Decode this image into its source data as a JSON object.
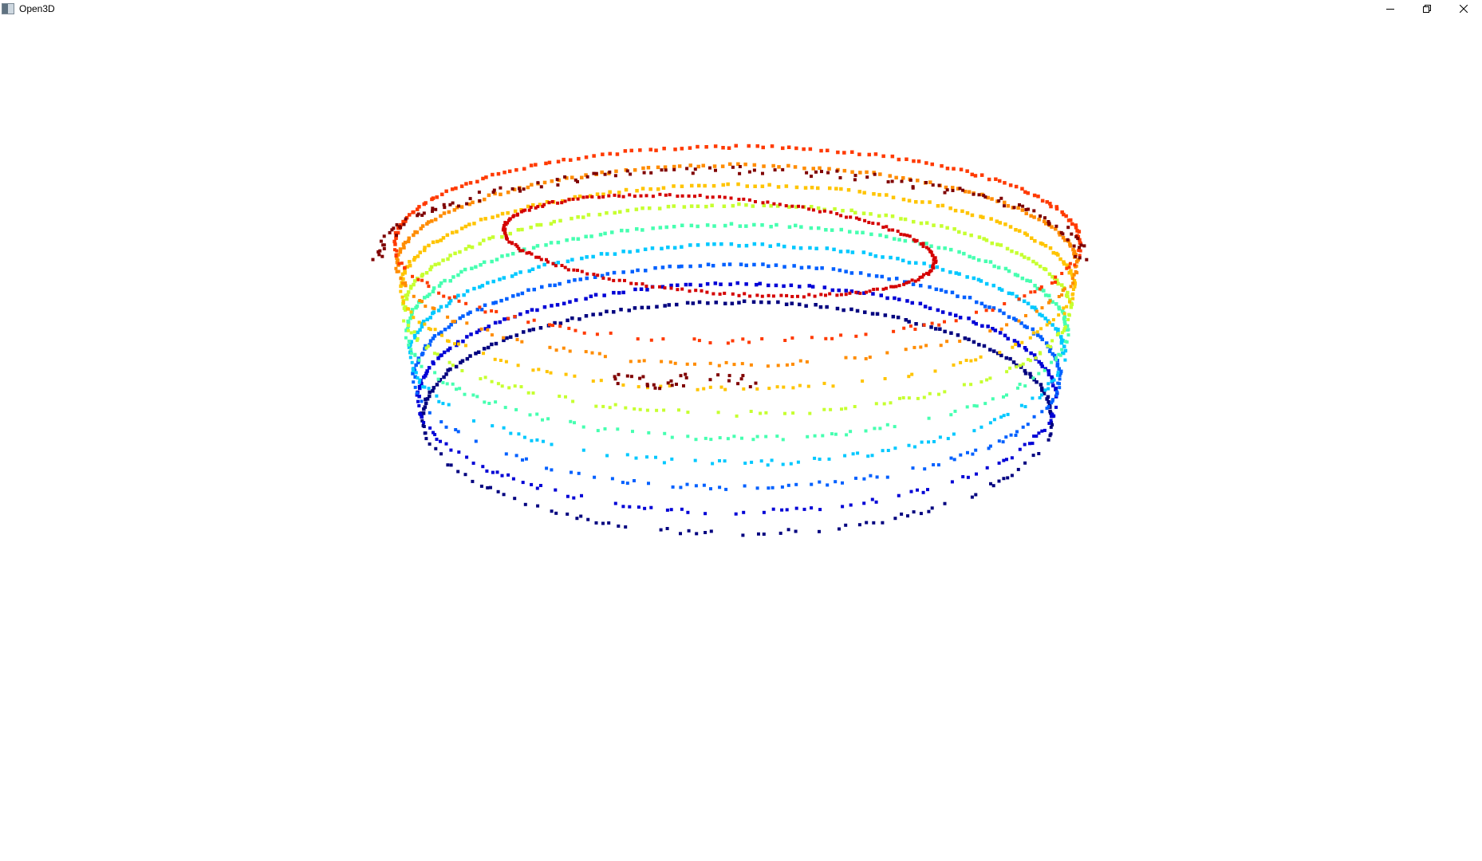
{
  "window": {
    "title": "Open3D",
    "icons": {
      "app": "app-icon",
      "minimize": "minimize-icon",
      "restore": "restore-icon",
      "close": "close-icon"
    }
  },
  "viewport": {
    "background": "#ffffff",
    "content": "point-cloud",
    "colormap": "jet",
    "colors": [
      "#00007f",
      "#0000d6",
      "#0060ff",
      "#00c8ff",
      "#46ffb0",
      "#c6ff30",
      "#ffc400",
      "#ff8c00",
      "#ff3a00",
      "#d40000",
      "#7f0000"
    ]
  }
}
